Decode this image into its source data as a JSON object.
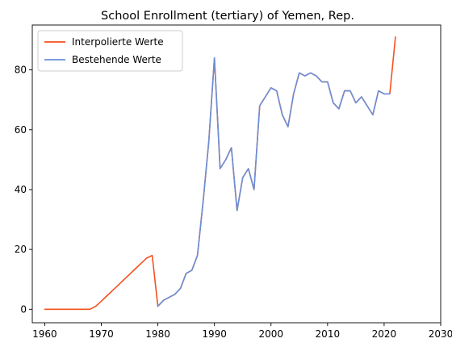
{
  "chart_data": {
    "type": "line",
    "title": "School Enrollment (tertiary) of Yemen, Rep.",
    "xlabel": "",
    "ylabel": "",
    "xlim": [
      1957.8,
      2030
    ],
    "ylim": [
      -4.5,
      95
    ],
    "xticks": [
      1960,
      1970,
      1980,
      1990,
      2000,
      2010,
      2020,
      2030
    ],
    "yticks": [
      0,
      20,
      40,
      60,
      80
    ],
    "grid": false,
    "legend_position": "top-left",
    "series": [
      {
        "name": "Interpolierte Werte",
        "color": "#f4511e",
        "x": [
          1960,
          1961,
          1962,
          1963,
          1964,
          1965,
          1966,
          1967,
          1968,
          1969,
          1970,
          1971,
          1972,
          1973,
          1974,
          1975,
          1976,
          1977,
          1978,
          1979,
          1980,
          1981,
          1982,
          1983,
          1984,
          1985,
          1986,
          1987,
          1988,
          1989,
          1990,
          1991,
          1992,
          1993,
          1994,
          1995,
          1996,
          1997,
          1998,
          1999,
          2000,
          2001,
          2002,
          2003,
          2004,
          2005,
          2006,
          2007,
          2008,
          2009,
          2010,
          2011,
          2012,
          2013,
          2014,
          2015,
          2016,
          2017,
          2018,
          2019,
          2020,
          2021,
          2022
        ],
        "values": [
          0,
          0,
          0,
          0,
          0,
          0,
          0,
          0,
          0,
          1,
          2.7,
          4.5,
          6.3,
          8.1,
          9.9,
          11.7,
          13.5,
          15.3,
          17.1,
          18,
          1,
          3,
          4,
          5,
          7,
          12,
          13,
          18,
          36,
          56,
          84,
          47,
          50,
          54,
          33,
          44,
          47,
          40,
          68,
          71,
          74,
          73,
          65,
          61,
          72,
          79,
          78,
          79,
          78,
          76,
          76,
          69,
          67,
          73,
          73,
          69,
          71,
          68,
          65,
          73,
          72,
          72,
          91
        ]
      },
      {
        "name": "Bestehende Werte",
        "color": "#6a8fd8",
        "x": [
          1980,
          1981,
          1982,
          1983,
          1984,
          1985,
          1986,
          1987,
          1988,
          1989,
          1990,
          1991,
          1992,
          1993,
          1994,
          1995,
          1996,
          1997,
          1998,
          1999,
          2000,
          2001,
          2002,
          2003,
          2004,
          2005,
          2006,
          2007,
          2008,
          2009,
          2010,
          2011,
          2012,
          2013,
          2014,
          2015,
          2016,
          2017,
          2018,
          2019,
          2020,
          2021
        ],
        "values": [
          1,
          3,
          4,
          5,
          7,
          12,
          13,
          18,
          36,
          56,
          84,
          47,
          50,
          54,
          33,
          44,
          47,
          40,
          68,
          71,
          74,
          73,
          65,
          61,
          72,
          79,
          78,
          79,
          78,
          76,
          76,
          69,
          67,
          73,
          73,
          69,
          71,
          68,
          65,
          73,
          72,
          72
        ]
      }
    ]
  }
}
